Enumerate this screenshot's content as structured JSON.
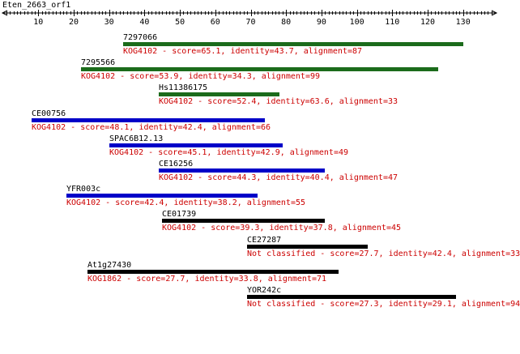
{
  "title": "Eten_2663_orf1",
  "colors": {
    "green": "#1b6b1b",
    "blue": "#0000c8",
    "black": "#000000",
    "text_red": "#cc0000"
  },
  "ruler": {
    "ticks": [
      10,
      20,
      30,
      40,
      50,
      60,
      70,
      80,
      90,
      100,
      110,
      120,
      130
    ]
  },
  "hits": [
    {
      "name": "7297066",
      "start": 34,
      "end": 130,
      "color": "green",
      "desc": "KOG4102 - score=65.1, identity=43.7, alignment=87"
    },
    {
      "name": "7295566",
      "start": 22,
      "end": 123,
      "color": "green",
      "desc": "KOG4102 - score=53.9, identity=34.3, alignment=99"
    },
    {
      "name": "Hs11386175",
      "start": 44,
      "end": 78,
      "color": "green",
      "desc": "KOG4102 - score=52.4, identity=63.6, alignment=33"
    },
    {
      "name": "CE00756",
      "start": 8,
      "end": 74,
      "color": "blue",
      "desc": "KOG4102 - score=48.1, identity=42.4, alignment=66"
    },
    {
      "name": "SPAC6B12.13",
      "start": 30,
      "end": 79,
      "color": "blue",
      "desc": "KOG4102 - score=45.1, identity=42.9, alignment=49"
    },
    {
      "name": "CE16256",
      "start": 44,
      "end": 91,
      "color": "blue",
      "desc": "KOG4102 - score=44.3, identity=40.4, alignment=47"
    },
    {
      "name": "YFR003c",
      "start": 18,
      "end": 72,
      "color": "blue",
      "desc": "KOG4102 - score=42.4, identity=38.2, alignment=55"
    },
    {
      "name": "CE01739",
      "start": 45,
      "end": 91,
      "color": "black",
      "desc": "KOG4102 - score=39.3, identity=37.8, alignment=45"
    },
    {
      "name": "CE27287",
      "start": 69,
      "end": 103,
      "color": "black",
      "desc": "Not classified - score=27.7, identity=42.4, alignment=33"
    },
    {
      "name": "At1g27430",
      "start": 24,
      "end": 95,
      "color": "black",
      "desc": "KOG1862 - score=27.7, identity=33.8, alignment=71"
    },
    {
      "name": "YOR242c",
      "start": 69,
      "end": 128,
      "color": "black",
      "desc": "Not classified - score=27.3, identity=29.1, alignment=94"
    }
  ]
}
